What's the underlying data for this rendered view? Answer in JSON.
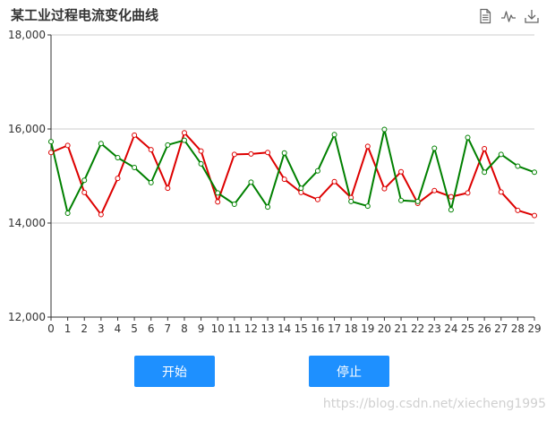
{
  "chart_data": {
    "type": "line",
    "title": "某工业过程电流变化曲线",
    "x": [
      0,
      1,
      2,
      3,
      4,
      5,
      6,
      7,
      8,
      9,
      10,
      11,
      12,
      13,
      14,
      15,
      16,
      17,
      18,
      19,
      20,
      21,
      22,
      23,
      24,
      25,
      26,
      27,
      28,
      29
    ],
    "xticks": [
      "0",
      "1",
      "2",
      "3",
      "4",
      "5",
      "6",
      "7",
      "8",
      "9",
      "10",
      "11",
      "12",
      "13",
      "14",
      "15",
      "16",
      "17",
      "18",
      "19",
      "20",
      "21",
      "22",
      "23",
      "24",
      "25",
      "26",
      "27",
      "28",
      "29"
    ],
    "ylim": [
      12000,
      18000
    ],
    "yticks": [
      "12,000",
      "14,000",
      "16,000",
      "18,000"
    ],
    "ytick_values": [
      12000,
      14000,
      16000,
      18000
    ],
    "grid": true,
    "series": [
      {
        "color": "#dd0000",
        "values": [
          15500,
          15650,
          14650,
          14180,
          14950,
          15870,
          15560,
          14740,
          15920,
          15530,
          14450,
          15460,
          15470,
          15500,
          14930,
          14650,
          14500,
          14880,
          14540,
          15630,
          14730,
          15090,
          14420,
          14690,
          14560,
          14640,
          15580,
          14660,
          14270,
          14160
        ]
      },
      {
        "color": "#008000",
        "values": [
          15730,
          14210,
          14910,
          15690,
          15390,
          15180,
          14860,
          15660,
          15760,
          15260,
          14640,
          14400,
          14870,
          14340,
          15490,
          14740,
          15110,
          15880,
          14460,
          14360,
          15990,
          14480,
          14460,
          15590,
          14280,
          15820,
          15080,
          15460,
          15210,
          15080
        ]
      }
    ]
  },
  "toolbox": {
    "data_view_icon": "document-icon",
    "magic_type_icon": "line-chart-icon",
    "save_icon": "download-icon"
  },
  "controls": {
    "start_label": "开始",
    "stop_label": "停止",
    "button_color": "#1e90ff"
  },
  "watermark": "https://blog.csdn.net/xiecheng1995"
}
